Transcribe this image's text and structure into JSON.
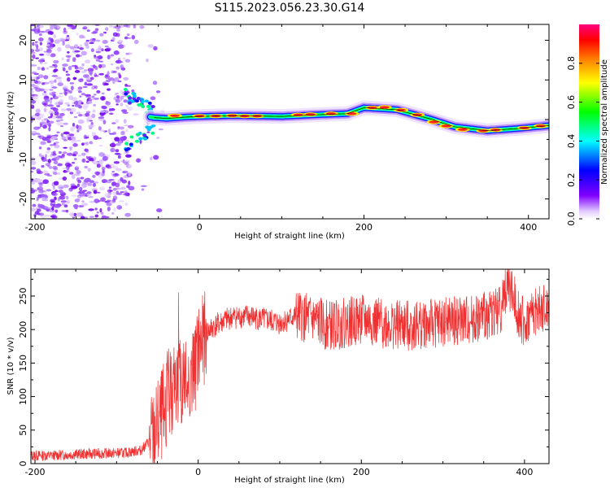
{
  "figure": {
    "title": "S115.2023.056.23.30.G14"
  },
  "chart_data": [
    {
      "type": "heatmap",
      "title": "S115.2023.056.23.30.G14",
      "xlabel": "Height of straight line (km)",
      "ylabel": "Frequency (Hz)",
      "xlim": [
        -205,
        425
      ],
      "ylim": [
        -25,
        24
      ],
      "xticks": [
        -200,
        0,
        200,
        400
      ],
      "yticks": [
        -20,
        -10,
        0,
        10,
        20
      ],
      "colorbar": {
        "label": "Normalized spectral amplitude",
        "range": [
          0,
          1
        ],
        "ticks": [
          0.0,
          0.2,
          0.4,
          0.6,
          0.8
        ],
        "tick_labels": [
          "0.0",
          "0.2",
          "0.4",
          "0.6",
          "0.8"
        ],
        "colormap": [
          "#ffffff",
          "#8000ff",
          "#0000ff",
          "#00ffff",
          "#00ff00",
          "#ffff00",
          "#ff8000",
          "#ff0000",
          "#ff0080"
        ]
      },
      "ridge": {
        "x": [
          -205,
          -85,
          -70,
          -55,
          -40,
          -20,
          0,
          40,
          100,
          140,
          180,
          200,
          240,
          280,
          310,
          350,
          390,
          425
        ],
        "y": [
          0,
          1.5,
          1.0,
          0.5,
          0.3,
          0.6,
          0.8,
          1.0,
          0.8,
          1.2,
          1.5,
          3.0,
          2.5,
          0.2,
          -1.8,
          -2.8,
          -2.2,
          -1.5
        ]
      },
      "grid": false
    },
    {
      "type": "line",
      "xlabel": "Height of straight line (km)",
      "ylabel": "SNR (10 * v/v)",
      "xlim": [
        -205,
        430
      ],
      "ylim": [
        0,
        290
      ],
      "xticks": [
        -200,
        0,
        200,
        400
      ],
      "yticks": [
        0,
        50,
        100,
        150,
        200,
        250
      ],
      "color": "#f03030",
      "grid": false,
      "x": [
        -205,
        -180,
        -150,
        -120,
        -90,
        -70,
        -55,
        -45,
        -35,
        -25,
        -15,
        -5,
        0,
        5,
        10,
        20,
        40,
        60,
        80,
        100,
        120,
        140,
        160,
        180,
        200,
        220,
        250,
        300,
        340,
        370,
        380,
        390,
        400,
        410,
        430
      ],
      "y": [
        12,
        12,
        14,
        15,
        16,
        20,
        40,
        70,
        110,
        120,
        120,
        135,
        170,
        180,
        195,
        205,
        218,
        220,
        215,
        210,
        220,
        215,
        205,
        210,
        215,
        210,
        205,
        210,
        215,
        230,
        270,
        235,
        205,
        225,
        230
      ]
    }
  ]
}
